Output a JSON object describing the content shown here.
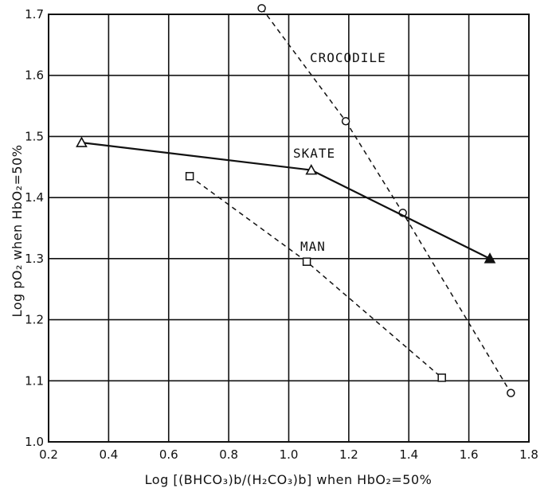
{
  "chart_data": {
    "type": "line",
    "title": "",
    "xlabel": "Log [(BHCO₃)b/(H₂CO₃)b] when HbO₂=50%",
    "ylabel": "Log pO₂ when HbO₂=50%",
    "xlim": [
      0.2,
      1.8
    ],
    "ylim": [
      1.0,
      1.7
    ],
    "x_ticks": [
      0.2,
      0.4,
      0.6,
      0.8,
      1.0,
      1.2,
      1.4,
      1.6,
      1.8
    ],
    "y_ticks": [
      1.0,
      1.1,
      1.2,
      1.3,
      1.4,
      1.5,
      1.6,
      1.7
    ],
    "x_tick_labels": [
      "0.2",
      "0.4",
      "0.6",
      "0.8",
      "1.0",
      "1.2",
      "1.4",
      "1.6",
      "1.8"
    ],
    "y_tick_labels": [
      "1.0",
      "1.1",
      "1.2",
      "1.3",
      "1.4",
      "1.5",
      "1.6",
      "1.7"
    ],
    "grid": true,
    "series": [
      {
        "name": "CROCODILE",
        "marker": "circle",
        "line_style": "dashed",
        "x": [
          0.91,
          1.19,
          1.38,
          1.74
        ],
        "y": [
          1.71,
          1.525,
          1.375,
          1.08
        ]
      },
      {
        "name": "SKATE",
        "marker": "triangle",
        "line_style": "solid",
        "x": [
          0.31,
          1.075,
          1.67
        ],
        "y": [
          1.49,
          1.445,
          1.3
        ]
      },
      {
        "name": "MAN",
        "marker": "square",
        "line_style": "dashed",
        "x": [
          0.67,
          1.06,
          1.51
        ],
        "y": [
          1.435,
          1.295,
          1.105
        ]
      }
    ]
  }
}
